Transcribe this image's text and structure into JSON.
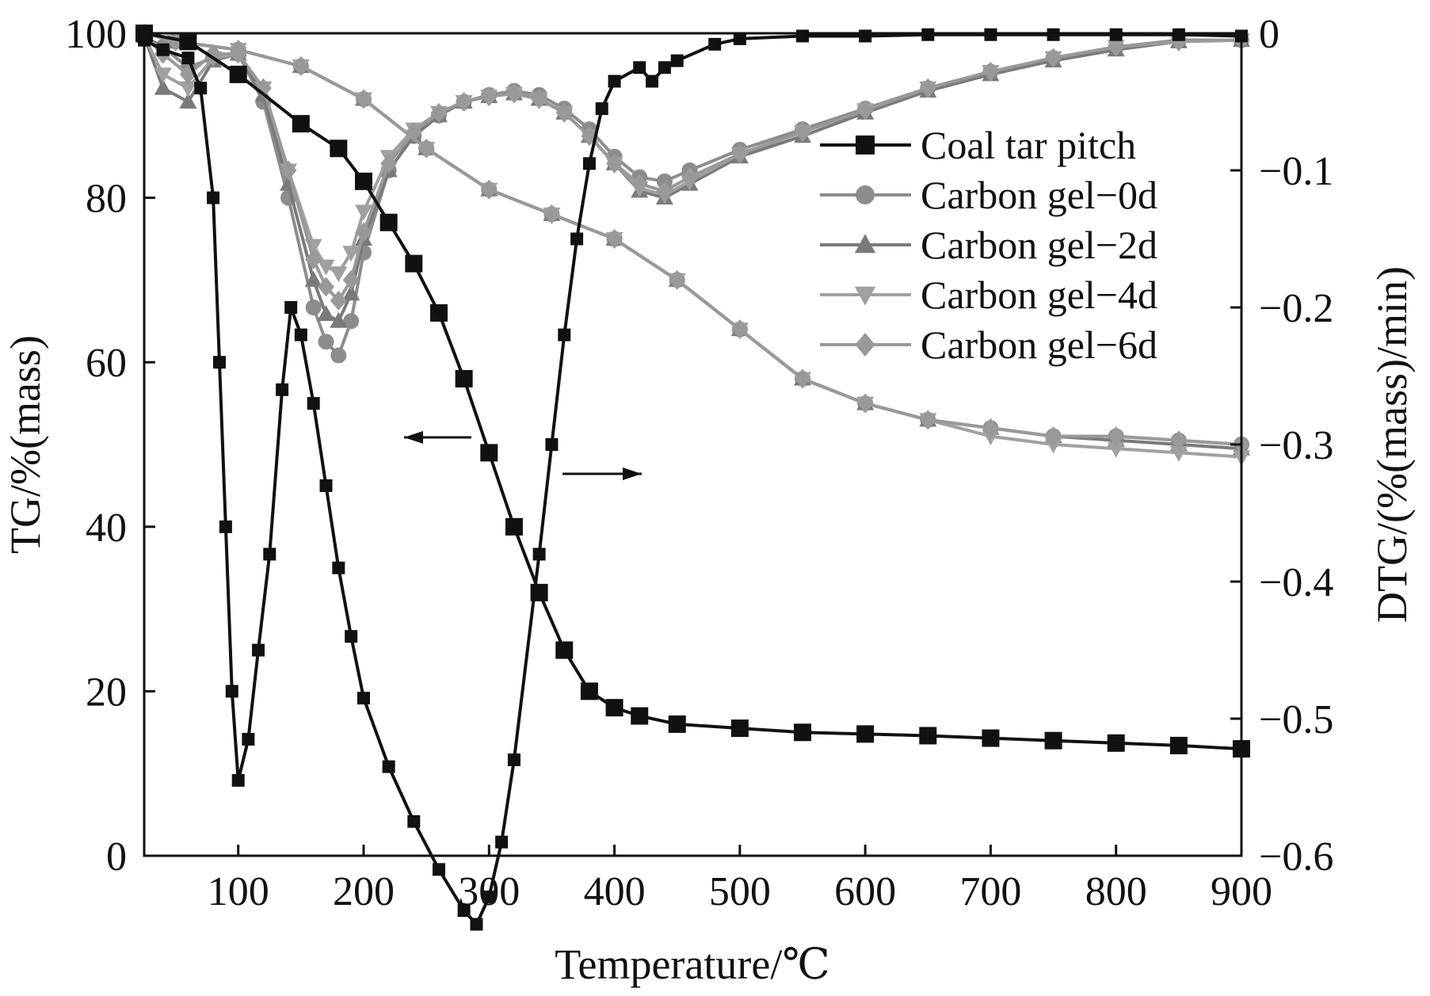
{
  "chart_data": {
    "type": "line",
    "xlabel": "Temperature/℃",
    "ylabel_left": "TG/%(mass)",
    "ylabel_right": "DTG/(%(mass)/min)",
    "xlim": [
      25,
      900
    ],
    "ylim_left": [
      0,
      100
    ],
    "ylim_right": [
      -0.6,
      0
    ],
    "xticks": [
      100,
      200,
      300,
      400,
      500,
      600,
      700,
      800,
      900
    ],
    "yticks_left": [
      0,
      20,
      40,
      60,
      80,
      100
    ],
    "yticks_right": [
      0,
      -0.1,
      -0.2,
      -0.3,
      -0.4,
      -0.5,
      -0.6
    ],
    "grid": false,
    "legend_position": "upper-right",
    "annotations": [
      {
        "type": "arrow",
        "direction": "left",
        "meaning": "TG curves read on left axis"
      },
      {
        "type": "arrow",
        "direction": "right",
        "meaning": "DTG curves read on right axis"
      }
    ],
    "series": [
      {
        "name": "Coal tar pitch",
        "kind": "TG",
        "axis": "left",
        "marker": "square",
        "color": "#111111",
        "x": [
          25,
          60,
          100,
          150,
          180,
          200,
          220,
          240,
          260,
          280,
          300,
          320,
          340,
          360,
          380,
          400,
          420,
          450,
          500,
          550,
          600,
          650,
          700,
          750,
          800,
          850,
          900
        ],
        "y": [
          100,
          99,
          95,
          89,
          86,
          82,
          77,
          72,
          66,
          58,
          49,
          40,
          32,
          25,
          20,
          18,
          17,
          16,
          15.5,
          15,
          14.8,
          14.6,
          14.3,
          14,
          13.7,
          13.4,
          13
        ]
      },
      {
        "name": "Coal tar pitch",
        "kind": "DTG",
        "axis": "right",
        "marker": "square",
        "color": "#111111",
        "x": [
          25,
          40,
          60,
          70,
          80,
          85,
          90,
          95,
          100,
          108,
          116,
          125,
          135,
          142,
          150,
          160,
          170,
          180,
          190,
          200,
          220,
          240,
          260,
          280,
          290,
          300,
          310,
          320,
          340,
          350,
          360,
          370,
          380,
          390,
          400,
          420,
          430,
          440,
          450,
          480,
          500,
          550,
          600,
          650,
          700,
          750,
          800,
          850,
          900
        ],
        "y": [
          -0.005,
          -0.012,
          -0.018,
          -0.04,
          -0.12,
          -0.24,
          -0.36,
          -0.48,
          -0.545,
          -0.515,
          -0.45,
          -0.38,
          -0.26,
          -0.2,
          -0.22,
          -0.27,
          -0.33,
          -0.39,
          -0.44,
          -0.485,
          -0.535,
          -0.575,
          -0.61,
          -0.64,
          -0.65,
          -0.63,
          -0.59,
          -0.53,
          -0.38,
          -0.3,
          -0.22,
          -0.15,
          -0.095,
          -0.055,
          -0.035,
          -0.025,
          -0.035,
          -0.025,
          -0.02,
          -0.008,
          -0.004,
          -0.002,
          -0.002,
          -0.001,
          -0.001,
          -0.001,
          -0.001,
          -0.001,
          -0.002
        ]
      },
      {
        "name": "Carbon gel−0d",
        "kind": "TG",
        "axis": "left",
        "marker": "circle",
        "color": "#8c8c8c",
        "x": [
          25,
          50,
          100,
          150,
          200,
          250,
          300,
          350,
          400,
          450,
          500,
          550,
          600,
          650,
          700,
          750,
          800,
          850,
          900
        ],
        "y": [
          100,
          99,
          98,
          96,
          92,
          86,
          81,
          78,
          75,
          70,
          64,
          58,
          55,
          53,
          52,
          51,
          51,
          50.5,
          50
        ]
      },
      {
        "name": "Carbon gel−0d",
        "kind": "DTG",
        "axis": "right",
        "marker": "circle",
        "color": "#8c8c8c",
        "x": [
          25,
          40,
          60,
          80,
          100,
          120,
          140,
          160,
          170,
          180,
          190,
          200,
          220,
          240,
          260,
          280,
          300,
          320,
          340,
          360,
          380,
          400,
          420,
          440,
          460,
          500,
          550,
          600,
          650,
          700,
          750,
          800,
          850,
          900
        ],
        "y": [
          -0.002,
          -0.01,
          -0.025,
          -0.018,
          -0.015,
          -0.05,
          -0.12,
          -0.2,
          -0.225,
          -0.235,
          -0.21,
          -0.16,
          -0.1,
          -0.075,
          -0.06,
          -0.05,
          -0.045,
          -0.042,
          -0.045,
          -0.055,
          -0.07,
          -0.09,
          -0.105,
          -0.108,
          -0.1,
          -0.085,
          -0.07,
          -0.055,
          -0.04,
          -0.028,
          -0.018,
          -0.01,
          -0.005,
          -0.005
        ]
      },
      {
        "name": "Carbon gel−2d",
        "kind": "TG",
        "axis": "left",
        "marker": "triangle-up",
        "color": "#7a7a7a",
        "x": [
          25,
          50,
          100,
          150,
          200,
          250,
          300,
          350,
          400,
          450,
          500,
          550,
          600,
          650,
          700,
          750,
          800,
          850,
          900
        ],
        "y": [
          100,
          99,
          98,
          96,
          92,
          86,
          81,
          78,
          75,
          70,
          64,
          58,
          55,
          53,
          52,
          51,
          50.5,
          50,
          49.5
        ]
      },
      {
        "name": "Carbon gel−2d",
        "kind": "DTG",
        "axis": "right",
        "marker": "triangle-up",
        "color": "#7a7a7a",
        "x": [
          25,
          40,
          60,
          80,
          100,
          120,
          140,
          160,
          170,
          180,
          190,
          200,
          220,
          240,
          260,
          280,
          300,
          320,
          340,
          360,
          380,
          400,
          420,
          440,
          460,
          500,
          550,
          600,
          650,
          700,
          750,
          800,
          850,
          900
        ],
        "y": [
          -0.002,
          -0.04,
          -0.05,
          -0.02,
          -0.015,
          -0.045,
          -0.11,
          -0.18,
          -0.205,
          -0.21,
          -0.19,
          -0.15,
          -0.1,
          -0.075,
          -0.06,
          -0.05,
          -0.046,
          -0.044,
          -0.048,
          -0.058,
          -0.075,
          -0.095,
          -0.115,
          -0.12,
          -0.11,
          -0.09,
          -0.075,
          -0.058,
          -0.042,
          -0.03,
          -0.02,
          -0.012,
          -0.006,
          -0.005
        ]
      },
      {
        "name": "Carbon gel−4d",
        "kind": "TG",
        "axis": "left",
        "marker": "triangle-down",
        "color": "#a0a0a0",
        "x": [
          25,
          50,
          100,
          150,
          200,
          250,
          300,
          350,
          400,
          450,
          500,
          550,
          600,
          650,
          700,
          750,
          800,
          850,
          900
        ],
        "y": [
          100,
          99,
          98,
          96,
          92,
          86,
          81,
          78,
          75,
          70,
          64,
          58,
          55,
          53,
          51,
          50,
          49.5,
          49,
          48.5
        ]
      },
      {
        "name": "Carbon gel−4d",
        "kind": "DTG",
        "axis": "right",
        "marker": "triangle-down",
        "color": "#a0a0a0",
        "x": [
          25,
          40,
          60,
          80,
          100,
          120,
          140,
          160,
          170,
          180,
          190,
          200,
          220,
          240,
          260,
          280,
          300,
          320,
          340,
          360,
          380,
          400,
          420,
          440,
          460,
          500,
          550,
          600,
          650,
          700,
          750,
          800,
          850,
          900
        ],
        "y": [
          -0.002,
          -0.03,
          -0.04,
          -0.018,
          -0.015,
          -0.04,
          -0.1,
          -0.155,
          -0.17,
          -0.175,
          -0.16,
          -0.13,
          -0.09,
          -0.07,
          -0.058,
          -0.05,
          -0.046,
          -0.044,
          -0.048,
          -0.058,
          -0.075,
          -0.095,
          -0.113,
          -0.118,
          -0.108,
          -0.088,
          -0.072,
          -0.056,
          -0.04,
          -0.028,
          -0.018,
          -0.01,
          -0.006,
          -0.005
        ]
      },
      {
        "name": "Carbon gel−6d",
        "kind": "TG",
        "axis": "left",
        "marker": "diamond",
        "color": "#999999",
        "x": [
          25,
          50,
          100,
          150,
          200,
          250,
          300,
          350,
          400,
          450,
          500,
          550,
          600,
          650,
          700,
          750,
          800,
          850,
          900
        ],
        "y": [
          100,
          99,
          98,
          96,
          92,
          86,
          81,
          78,
          75,
          70,
          64,
          58,
          55,
          53,
          52,
          51,
          51,
          50.5,
          50
        ]
      },
      {
        "name": "Carbon gel−6d",
        "kind": "DTG",
        "axis": "right",
        "marker": "diamond",
        "color": "#999999",
        "x": [
          25,
          40,
          60,
          80,
          100,
          120,
          140,
          160,
          170,
          180,
          190,
          200,
          220,
          240,
          260,
          280,
          300,
          320,
          340,
          360,
          380,
          400,
          420,
          440,
          460,
          500,
          550,
          600,
          650,
          700,
          750,
          800,
          850,
          900
        ],
        "y": [
          -0.002,
          -0.015,
          -0.03,
          -0.015,
          -0.015,
          -0.04,
          -0.1,
          -0.165,
          -0.185,
          -0.195,
          -0.18,
          -0.145,
          -0.095,
          -0.072,
          -0.058,
          -0.05,
          -0.046,
          -0.044,
          -0.048,
          -0.058,
          -0.075,
          -0.095,
          -0.11,
          -0.115,
          -0.105,
          -0.088,
          -0.072,
          -0.056,
          -0.04,
          -0.028,
          -0.018,
          -0.01,
          -0.006,
          -0.005
        ]
      }
    ],
    "legend": [
      {
        "label": "Coal tar pitch",
        "marker": "square",
        "color": "#111111"
      },
      {
        "label": "Carbon gel−0d",
        "marker": "circle",
        "color": "#8c8c8c"
      },
      {
        "label": "Carbon gel−2d",
        "marker": "triangle-up",
        "color": "#7a7a7a"
      },
      {
        "label": "Carbon gel−4d",
        "marker": "triangle-down",
        "color": "#a0a0a0"
      },
      {
        "label": "Carbon gel−6d",
        "marker": "diamond",
        "color": "#999999"
      }
    ]
  }
}
